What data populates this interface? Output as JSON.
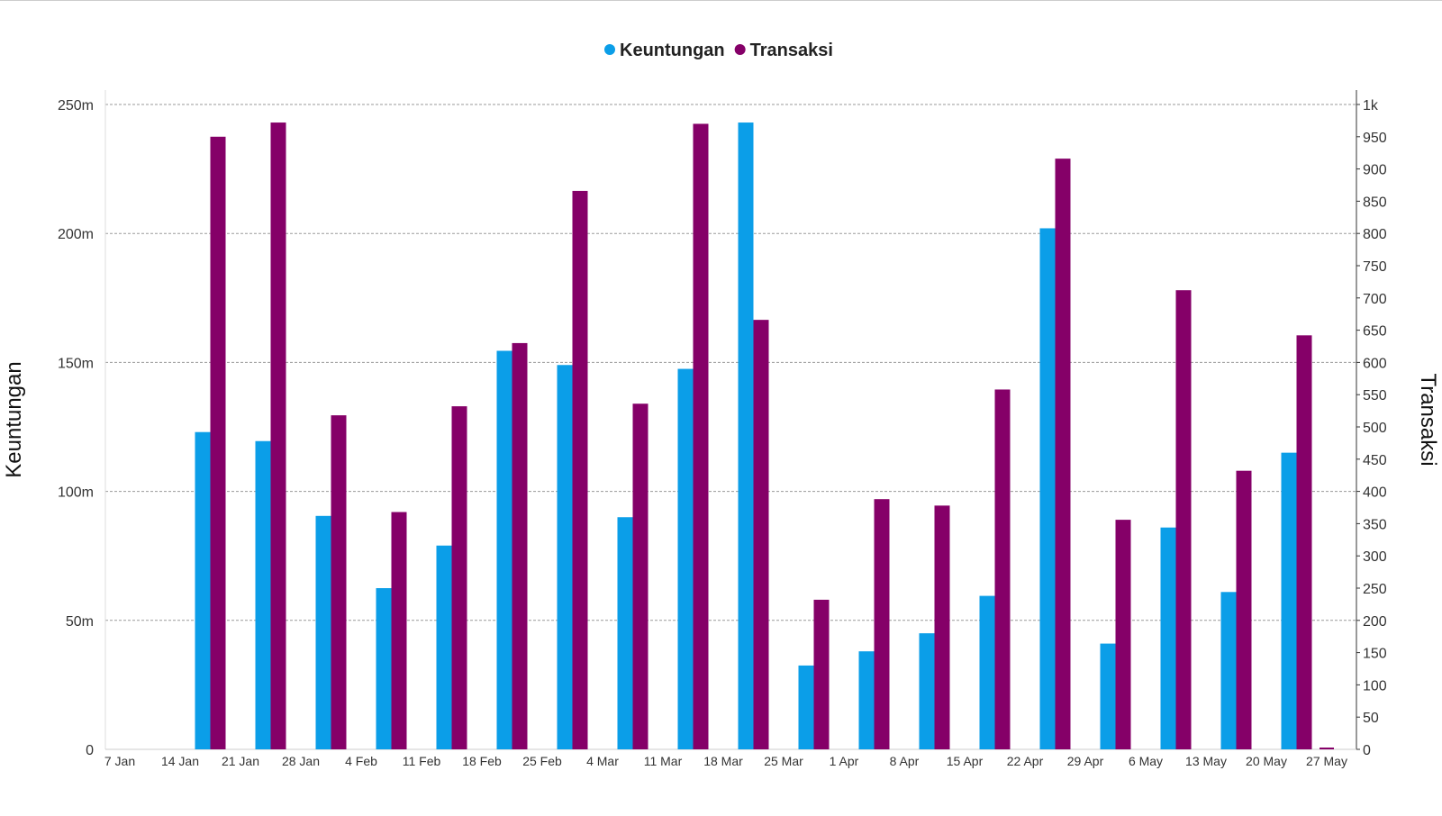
{
  "chart_data": {
    "type": "bar",
    "title": "",
    "legend_position": "top-center",
    "categories": [
      "7 Jan",
      "14 Jan",
      "21 Jan",
      "28 Jan",
      "4 Feb",
      "11 Feb",
      "18 Feb",
      "25 Feb",
      "4 Mar",
      "11 Mar",
      "18 Mar",
      "25 Mar",
      "1 Apr",
      "8 Apr",
      "15 Apr",
      "22 Apr",
      "29 Apr",
      "6 May",
      "13 May",
      "20 May",
      "27 May"
    ],
    "series": [
      {
        "name": "Keuntungan",
        "axis": "left",
        "color": "#0B9EE8",
        "values": [
          0,
          123,
          119.5,
          90.5,
          62.5,
          79,
          154.5,
          149,
          90,
          147.5,
          243,
          32.5,
          38,
          45,
          59.5,
          202,
          41,
          86,
          61,
          115,
          0
        ]
      },
      {
        "name": "Transaksi",
        "axis": "right",
        "color": "#850068",
        "values": [
          0,
          950,
          972,
          518,
          368,
          532,
          630,
          866,
          536,
          970,
          666,
          232,
          388,
          378,
          558,
          916,
          356,
          712,
          432,
          642,
          0
        ]
      }
    ],
    "y_left": {
      "label": "Keuntungan",
      "range": [
        0,
        250000000
      ],
      "ticks": [
        0,
        50000000,
        100000000,
        150000000,
        200000000,
        250000000
      ],
      "tick_labels": [
        "0",
        "50m",
        "100m",
        "150m",
        "200m",
        "250m"
      ],
      "unit_note": "values in millions"
    },
    "y_right": {
      "label": "Transaksi",
      "range": [
        0,
        1000
      ],
      "ticks": [
        0,
        50,
        100,
        150,
        200,
        250,
        300,
        350,
        400,
        450,
        500,
        550,
        600,
        650,
        700,
        750,
        800,
        850,
        900,
        950,
        1000
      ],
      "tick_labels": [
        "0",
        "50",
        "100",
        "150",
        "200",
        "250",
        "300",
        "350",
        "400",
        "450",
        "500",
        "550",
        "600",
        "650",
        "700",
        "750",
        "800",
        "850",
        "900",
        "950",
        "1k"
      ]
    },
    "grid": true
  }
}
